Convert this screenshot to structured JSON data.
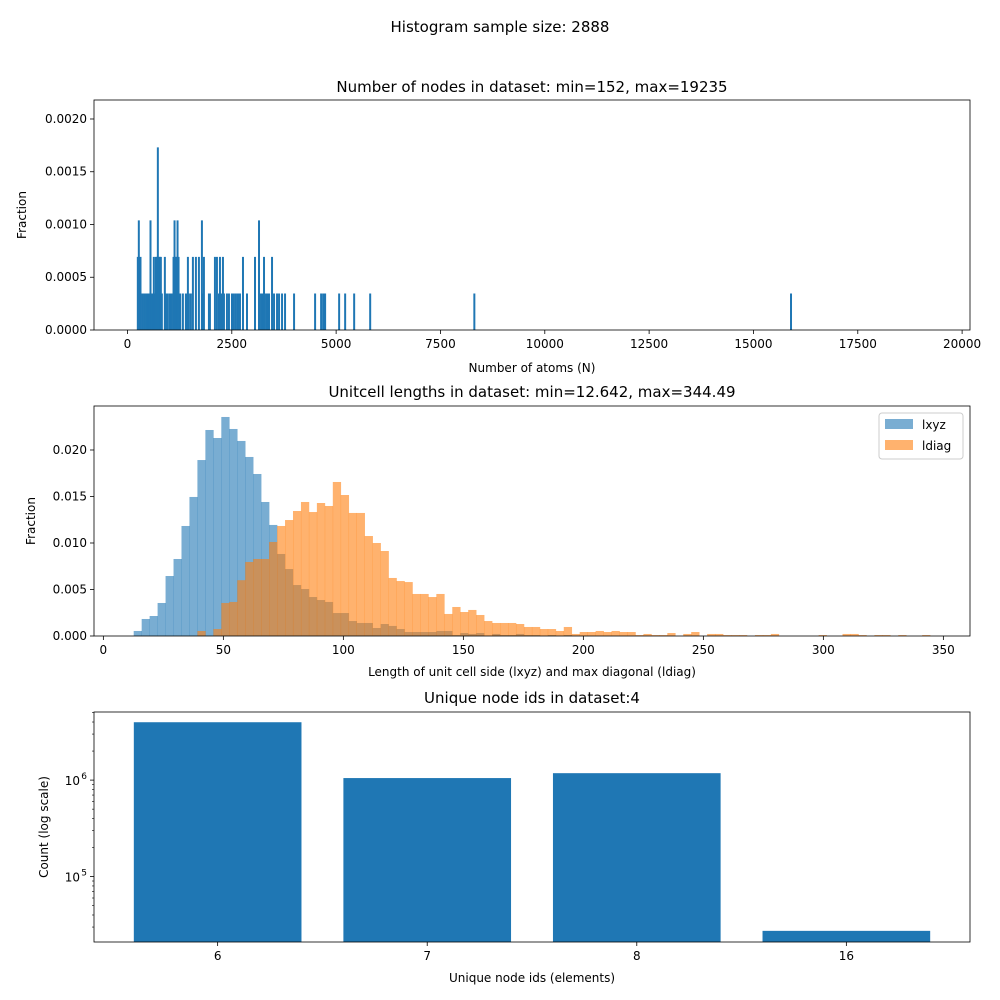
{
  "suptitle": "Histogram sample size: 2888",
  "colors": {
    "blue": "#1f77b4",
    "orange": "#ff7f0e"
  },
  "chart_data": [
    {
      "type": "bar",
      "title": "Number of nodes in dataset: min=152, max=19235",
      "xlabel": "Number of atoms (N)",
      "ylabel": "Fraction",
      "xlim": [
        -802,
        20189
      ],
      "ylim": [
        0,
        0.00218
      ],
      "xticks": [
        0,
        2500,
        5000,
        7500,
        10000,
        12500,
        15000,
        17500,
        20000
      ],
      "yticks": [
        "0.0000",
        "0.0005",
        "0.0010",
        "0.0015",
        "0.0020"
      ],
      "bin_width": 47.7,
      "bins": [
        [
          248,
          0.000693
        ],
        [
          272,
          0.001039
        ],
        [
          312,
          0.000693
        ],
        [
          360,
          0.000346
        ],
        [
          408,
          0.000346
        ],
        [
          456,
          0.000346
        ],
        [
          480,
          0.000346
        ],
        [
          504,
          0.000346
        ],
        [
          528,
          0.000346
        ],
        [
          552,
          0.001039
        ],
        [
          576,
          0.000346
        ],
        [
          600,
          0.000346
        ],
        [
          624,
          0.000346
        ],
        [
          632,
          0.000693
        ],
        [
          648,
          0.000346
        ],
        [
          680,
          0.000693
        ],
        [
          704,
          0.000693
        ],
        [
          728,
          0.001731
        ],
        [
          752,
          0.000693
        ],
        [
          776,
          0.000693
        ],
        [
          800,
          0.000693
        ],
        [
          824,
          0.000346
        ],
        [
          896,
          0.000693
        ],
        [
          920,
          0.000346
        ],
        [
          944,
          0.000346
        ],
        [
          968,
          0.000346
        ],
        [
          1016,
          0.000346
        ],
        [
          1040,
          0.000346
        ],
        [
          1064,
          0.000346
        ],
        [
          1104,
          0.000693
        ],
        [
          1128,
          0.001039
        ],
        [
          1152,
          0.000693
        ],
        [
          1176,
          0.000693
        ],
        [
          1200,
          0.001039
        ],
        [
          1224,
          0.000693
        ],
        [
          1264,
          0.000346
        ],
        [
          1328,
          0.000346
        ],
        [
          1400,
          0.000346
        ],
        [
          1424,
          0.000346
        ],
        [
          1448,
          0.000693
        ],
        [
          1472,
          0.000346
        ],
        [
          1520,
          0.000346
        ],
        [
          1568,
          0.000693
        ],
        [
          1640,
          0.000693
        ],
        [
          1712,
          0.000693
        ],
        [
          1784,
          0.001039
        ],
        [
          1808,
          0.000346
        ],
        [
          1832,
          0.000693
        ],
        [
          1952,
          0.000346
        ],
        [
          1976,
          0.000346
        ],
        [
          2096,
          0.000693
        ],
        [
          2144,
          0.000693
        ],
        [
          2192,
          0.000346
        ],
        [
          2216,
          0.000693
        ],
        [
          2240,
          0.000346
        ],
        [
          2264,
          0.000346
        ],
        [
          2288,
          0.000693
        ],
        [
          2312,
          0.000346
        ],
        [
          2384,
          0.000346
        ],
        [
          2432,
          0.000346
        ],
        [
          2504,
          0.000346
        ],
        [
          2528,
          0.000346
        ],
        [
          2552,
          0.000346
        ],
        [
          2600,
          0.000346
        ],
        [
          2648,
          0.000346
        ],
        [
          2672,
          0.000346
        ],
        [
          2696,
          0.000346
        ],
        [
          2768,
          0.000693
        ],
        [
          2864,
          0.000346
        ],
        [
          3056,
          0.000693
        ],
        [
          3152,
          0.001039
        ],
        [
          3200,
          0.000346
        ],
        [
          3224,
          0.000346
        ],
        [
          3248,
          0.000346
        ],
        [
          3272,
          0.000693
        ],
        [
          3320,
          0.000346
        ],
        [
          3344,
          0.000346
        ],
        [
          3368,
          0.000346
        ],
        [
          3392,
          0.000346
        ],
        [
          3464,
          0.000693
        ],
        [
          3512,
          0.000346
        ],
        [
          3584,
          0.000346
        ],
        [
          3632,
          0.000346
        ],
        [
          3704,
          0.000346
        ],
        [
          3776,
          0.000346
        ],
        [
          3992,
          0.000346
        ],
        [
          4496,
          0.000346
        ],
        [
          4640,
          0.000346
        ],
        [
          4688,
          0.000346
        ],
        [
          4712,
          0.000346
        ],
        [
          4736,
          0.000346
        ],
        [
          5072,
          0.000346
        ],
        [
          5216,
          0.000346
        ],
        [
          5432,
          0.000346
        ],
        [
          5816,
          0.000346
        ],
        [
          8312,
          0.000346
        ],
        [
          15900,
          0.000346
        ]
      ]
    },
    {
      "type": "bar",
      "title": "Unitcell lengths in dataset: min=12.642, max=344.49",
      "xlabel": "Length of unit cell side (lxyz) and max diagonal (ldiag)",
      "ylabel": "Fraction",
      "xlim": [
        -3.9,
        361.1
      ],
      "ylim": [
        0,
        0.02473
      ],
      "xticks": [
        0,
        50,
        100,
        150,
        200,
        250,
        300,
        350
      ],
      "yticks": [
        "0.000",
        "0.005",
        "0.010",
        "0.015",
        "0.020"
      ],
      "bin_start": 12.642,
      "bin_width": 3.31848,
      "legend_position": "top-right",
      "series": [
        {
          "name": "lxyz",
          "color": "#1f77b4",
          "alpha": 0.6,
          "values": [
            0.00054,
            0.00183,
            0.00215,
            0.00355,
            0.00645,
            0.00828,
            0.01183,
            0.01495,
            0.01892,
            0.02215,
            0.02129,
            0.02355,
            0.02226,
            0.02097,
            0.01925,
            0.01742,
            0.01441,
            0.01194,
            0.00882,
            0.0072,
            0.00548,
            0.00505,
            0.00419,
            0.00387,
            0.00366,
            0.00247,
            0.00247,
            0.00161,
            0.0014,
            0.0014,
            0.00086,
            0.00129,
            0.00108,
            0.00075,
            0.00043,
            0.00043,
            0.00043,
            0.00043,
            0.00054,
            0.00054,
            0.0001,
            0.00032,
            0.00022,
            0.00032,
            0,
            0.00022,
            0.0001,
            0.0001,
            0.00022,
            0.0001,
            0.0001,
            0,
            0.0001,
            0,
            0.0001,
            0,
            0,
            0,
            0,
            0,
            0,
            0,
            0,
            0,
            0,
            0,
            0,
            0,
            0,
            0,
            0,
            0,
            0,
            0,
            0,
            0,
            0,
            0,
            0,
            0,
            0,
            0,
            0,
            0,
            0,
            0,
            0,
            0,
            0,
            0,
            0,
            0,
            0,
            0,
            0,
            0,
            0,
            0,
            0,
            0
          ]
        },
        {
          "name": "ldiag",
          "color": "#ff7f0e",
          "alpha": 0.6,
          "values": [
            0,
            0,
            0,
            0,
            0,
            0,
            0,
            0,
            0.00054,
            0,
            0.00075,
            0.00355,
            0.00366,
            0.006,
            0.00796,
            0.00828,
            0.00828,
            0.01011,
            0.01183,
            0.01247,
            0.01344,
            0.01441,
            0.01333,
            0.0143,
            0.01398,
            0.01656,
            0.01516,
            0.01323,
            0.01323,
            0.01075,
            0.01,
            0.00914,
            0.00624,
            0.00591,
            0.0058,
            0.00452,
            0.00452,
            0.00419,
            0.00452,
            0.00237,
            0.00312,
            0.00258,
            0.0028,
            0.00226,
            0.00161,
            0.0014,
            0.0014,
            0.0014,
            0.00129,
            0.00097,
            0.00097,
            0.00075,
            0.00075,
            0.00054,
            0.00097,
            0.00022,
            0.00043,
            0.00043,
            0.00054,
            0.00043,
            0.00054,
            0.00043,
            0.00043,
            0.0001,
            0.00022,
            0.0001,
            0.0001,
            0.00032,
            0,
            0.00022,
            0.00043,
            0,
            0.00022,
            0.00022,
            0.0001,
            0.0001,
            0.0001,
            0,
            0.0001,
            0.0001,
            0.00022,
            0,
            0,
            0,
            0,
            0,
            0.0001,
            0,
            0,
            0.00022,
            0.00022,
            0.0001,
            0,
            0.0001,
            0.0001,
            0,
            0.0001,
            0,
            0,
            0.0001
          ]
        }
      ]
    },
    {
      "type": "bar",
      "title": "Unique node ids in dataset:4",
      "xlabel": "Unique node ids (elements)",
      "ylabel": "Count (log scale)",
      "yscale": "log",
      "ylim": [
        21000,
        5080000
      ],
      "categories": [
        "6",
        "7",
        "8",
        "16"
      ],
      "values": [
        3980000,
        1050000,
        1180000,
        27400
      ],
      "ytick_labels": [
        {
          "base": "10",
          "exp": "5",
          "value": 100000
        },
        {
          "base": "10",
          "exp": "6",
          "value": 1000000
        }
      ]
    }
  ]
}
